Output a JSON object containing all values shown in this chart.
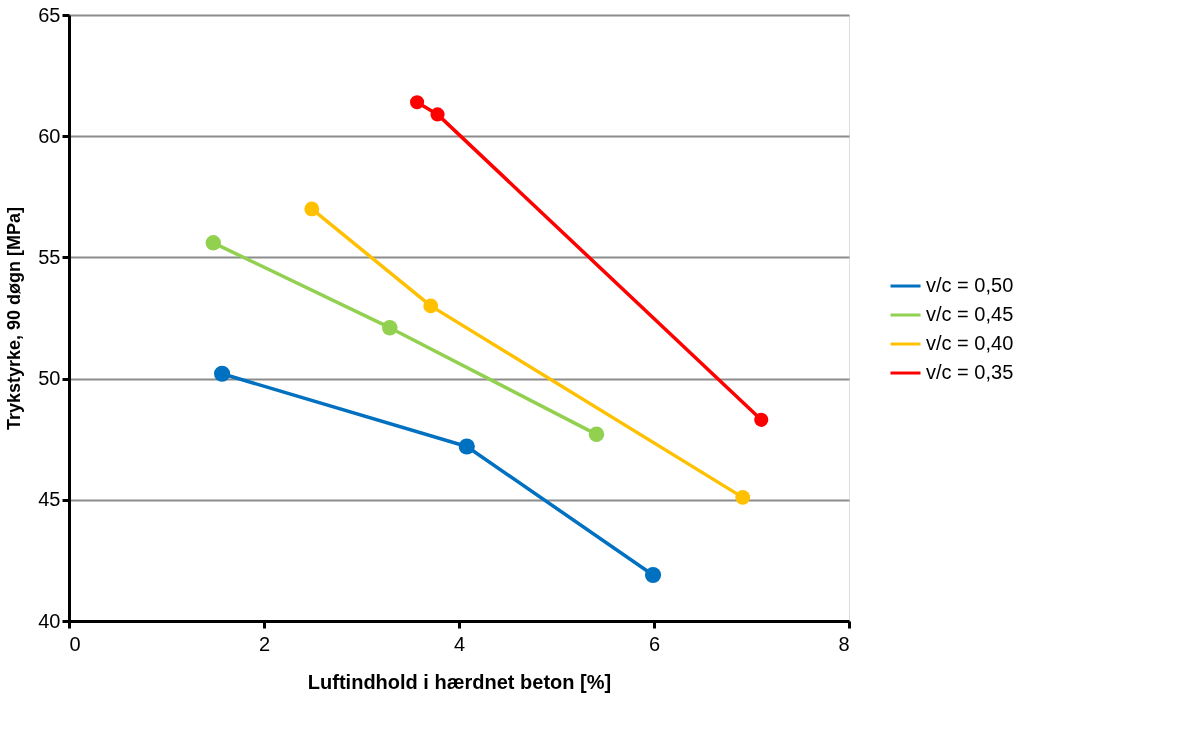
{
  "chart_data": {
    "type": "line",
    "xlabel": "Luftindhold i hærdnet beton [%]",
    "ylabel": "Trykstyrke,  90 døgn [MPa]",
    "xlim": [
      0,
      8
    ],
    "xticks": [
      0,
      2,
      4,
      6,
      8
    ],
    "ylim": [
      40,
      65
    ],
    "yticks": [
      40,
      45,
      50,
      55,
      60,
      65
    ],
    "grid": "y",
    "legend": "right",
    "marker": "circle",
    "line_style": "solid",
    "series": [
      {
        "name": "v/c = 0,50",
        "color": "#0070c0",
        "x": [
          1.57,
          4.08,
          5.99
        ],
        "values": [
          50.2,
          47.2,
          41.9
        ]
      },
      {
        "name": "v/c = 0,45",
        "color": "#92d050",
        "x": [
          1.48,
          3.29,
          5.41
        ],
        "values": [
          55.6,
          52.1,
          47.7
        ]
      },
      {
        "name": "v/c = 0,40",
        "color": "#ffc000",
        "x": [
          2.49,
          3.71,
          6.91
        ],
        "values": [
          57.0,
          53.0,
          45.1
        ]
      },
      {
        "name": "v/c = 0,35",
        "color": "#ff0000",
        "x": [
          3.57,
          3.78,
          7.1
        ],
        "values": [
          61.4,
          60.9,
          48.3
        ]
      }
    ]
  }
}
